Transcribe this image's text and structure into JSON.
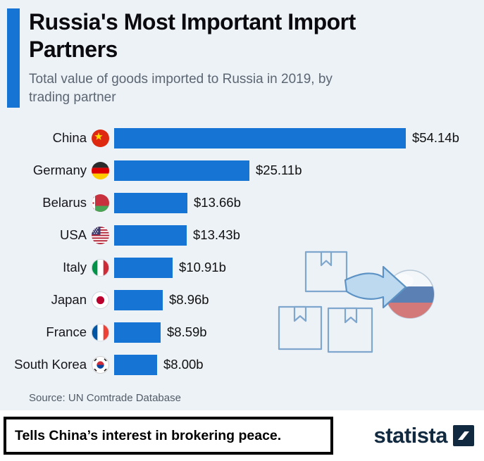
{
  "chart_data": {
    "type": "bar",
    "orientation": "horizontal",
    "title": "Russia's Most Important Import Partners",
    "subtitle": "Total value of goods imported to Russia in 2019, by trading partner",
    "categories": [
      "China",
      "Germany",
      "Belarus",
      "USA",
      "Italy",
      "Japan",
      "France",
      "South Korea"
    ],
    "values": [
      54.14,
      25.11,
      13.66,
      13.43,
      10.91,
      8.96,
      8.59,
      8.0
    ],
    "value_labels": [
      "$54.14b",
      "$25.11b",
      "$13.66b",
      "$13.43b",
      "$10.91b",
      "$8.96b",
      "$8.59b",
      "$8.00b"
    ],
    "unit": "billion USD",
    "xlim": [
      0,
      54.14
    ],
    "grid": false,
    "legend": "none",
    "flags": [
      "china",
      "germany",
      "belarus",
      "usa",
      "italy",
      "japan",
      "france",
      "south-korea"
    ]
  },
  "source": "Source: UN Comtrade Database",
  "footer": {
    "annotation": "Tells China’s interest in brokering peace.",
    "brand": "statista"
  },
  "colors": {
    "bar": "#1574d4",
    "accent": "#1574d4",
    "background": "#edf2f7",
    "brand_navy": "#122a40"
  }
}
